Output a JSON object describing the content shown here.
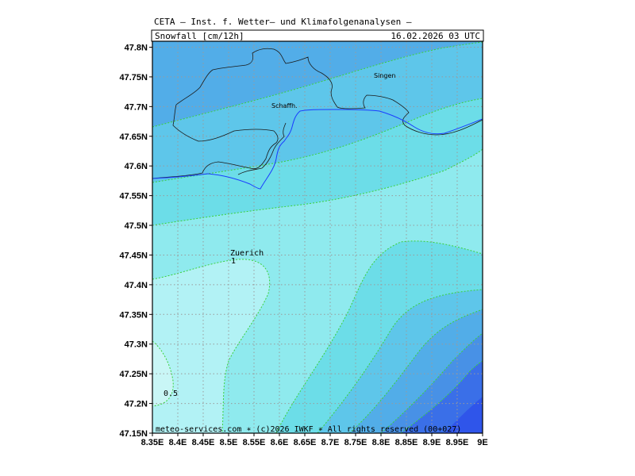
{
  "header": {
    "title": "CETA — Inst. f. Wetter— und Klimafolgenanalysen —",
    "field": "Snowfall [cm/12h]",
    "datetime": "16.02.2026  03 UTC"
  },
  "footer": {
    "credit": "meteo-services.com ∗ (c)2026 IWKF ∗ All rights reserved (00+027)"
  },
  "axes": {
    "lat_labels": [
      "47.8N",
      "47.75N",
      "47.7N",
      "47.65N",
      "47.6N",
      "47.55N",
      "47.5N",
      "47.45N",
      "47.4N",
      "47.35N",
      "47.3N",
      "47.25N",
      "47.2N",
      "47.15N"
    ],
    "lon_labels": [
      "8.35E",
      "8.4E",
      "8.45E",
      "8.5E",
      "8.55E",
      "8.6E",
      "8.65E",
      "8.7E",
      "8.75E",
      "8.8E",
      "8.85E",
      "8.9E",
      "8.95E",
      "9E"
    ],
    "lat_range": [
      47.15,
      47.81
    ],
    "lon_range": [
      8.35,
      9.0
    ],
    "grid": "dotted"
  },
  "places": {
    "singen": "Singen",
    "schaffhausen": "Schaffh.",
    "zuerich": "Zuerich"
  },
  "contour_labels": {
    "one": "1",
    "half": "0.5"
  },
  "colors": {
    "band_0": "#c9f6f6",
    "band_1": "#b2f2f5",
    "band_2": "#8feaee",
    "band_3": "#6cdde8",
    "band_4": "#5ec6ea",
    "band_5": "#52ade8",
    "band_6": "#4891e6",
    "band_7": "#3a6fe8",
    "band_8": "#2f55ea",
    "contour_line": "#3bd13b",
    "border": "#000000",
    "river": "#1a3cff"
  }
}
